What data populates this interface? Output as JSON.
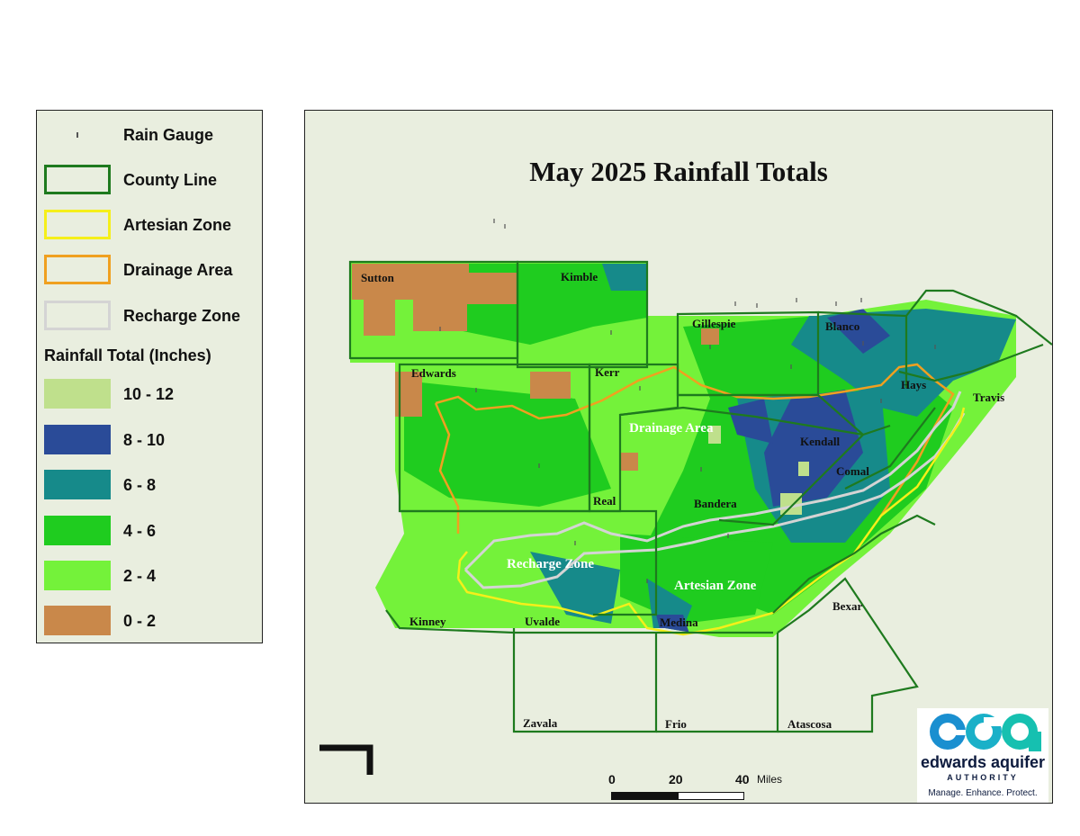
{
  "map_title": "May 2025 Rainfall Totals",
  "legend": {
    "symbols": [
      {
        "label": "Rain Gauge",
        "type": "point",
        "color": "#555555"
      },
      {
        "label": "County Line",
        "type": "line",
        "color": "#1e7a1e"
      },
      {
        "label": "Artesian Zone",
        "type": "line",
        "color": "#f5ef1a"
      },
      {
        "label": "Drainage Area",
        "type": "line",
        "color": "#f0a020"
      },
      {
        "label": "Recharge Zone",
        "type": "line",
        "color": "#d4d4d4"
      }
    ],
    "rainfall_title": "Rainfall Total (Inches)",
    "classes": [
      {
        "label": "10 - 12",
        "color": "#bfe08c"
      },
      {
        "label": "8 - 10",
        "color": "#2a4b98"
      },
      {
        "label": "6 - 8",
        "color": "#168a8a"
      },
      {
        "label": "4 - 6",
        "color": "#1fcc1f"
      },
      {
        "label": "2 - 4",
        "color": "#74f23a"
      },
      {
        "label": "0 - 2",
        "color": "#c9884a"
      }
    ]
  },
  "counties": [
    {
      "name": "Sutton"
    },
    {
      "name": "Kimble"
    },
    {
      "name": "Gillespie"
    },
    {
      "name": "Blanco"
    },
    {
      "name": "Edwards"
    },
    {
      "name": "Kerr"
    },
    {
      "name": "Hays"
    },
    {
      "name": "Travis"
    },
    {
      "name": "Kendall"
    },
    {
      "name": "Comal"
    },
    {
      "name": "Real"
    },
    {
      "name": "Bandera"
    },
    {
      "name": "Kinney"
    },
    {
      "name": "Uvalde"
    },
    {
      "name": "Medina"
    },
    {
      "name": "Bexar"
    },
    {
      "name": "Zavala"
    },
    {
      "name": "Frio"
    },
    {
      "name": "Atascosa"
    }
  ],
  "zone_labels": [
    "Drainage Area",
    "Recharge Zone",
    "Artesian Zone"
  ],
  "scale_bar": {
    "ticks": [
      "0",
      "20",
      "40"
    ],
    "unit": "Miles"
  },
  "logo": {
    "name": "edwards aquifer",
    "subtitle": "AUTHORITY",
    "tagline": "Manage. Enhance. Protect."
  },
  "colors": {
    "background": "#e9eedf",
    "county_line": "#1e7a1e"
  }
}
